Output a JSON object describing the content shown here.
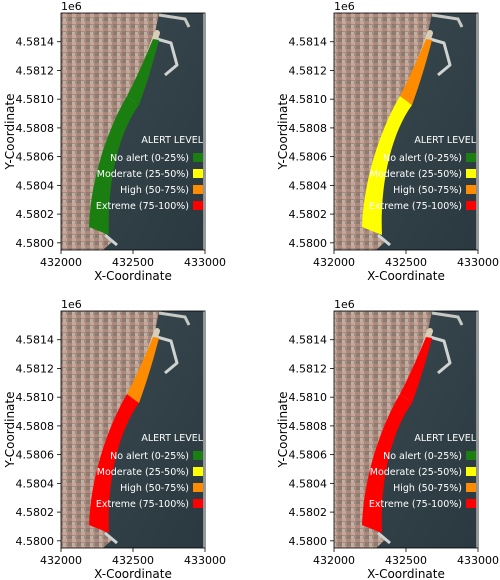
{
  "figure": {
    "axis_labels": {
      "x": "X-Coordinate",
      "y": "Y-Coordinate"
    },
    "offset_label": "1e6",
    "xticks": [
      "432000",
      "432500",
      "433000"
    ],
    "yticks": [
      "4.5814",
      "4.5812",
      "4.5810",
      "4.5808",
      "4.5806",
      "4.5804",
      "4.5802",
      "4.5800"
    ],
    "legend": {
      "title": "ALERT LEVEL",
      "entries": [
        {
          "label": "No alert (0-25%)",
          "color": "#1a7f10"
        },
        {
          "label": "Moderate (25-50%)",
          "color": "#ffff00"
        },
        {
          "label": "High  (50-75%)",
          "color": "#ff8c00"
        },
        {
          "label": "Extreme (75-100%)",
          "color": "#ff0000"
        }
      ]
    }
  },
  "chart_data": [
    {
      "type": "map",
      "xlabel": "X-Coordinate",
      "ylabel": "Y-Coordinate",
      "xlim": [
        432000,
        433000
      ],
      "ylim": [
        4.57995,
        4.5816
      ],
      "y_offset": "1e6",
      "legend_placement": "right",
      "segments": {
        "south": "No alert",
        "north": "No alert"
      },
      "segment_colors": {
        "south": "#1a7f10",
        "north": "#1a7f10"
      }
    },
    {
      "type": "map",
      "xlabel": "X-Coordinate",
      "ylabel": "Y-Coordinate",
      "xlim": [
        432000,
        433000
      ],
      "ylim": [
        4.57995,
        4.5816
      ],
      "y_offset": "1e6",
      "legend_placement": "right",
      "segments": {
        "south": "Moderate",
        "north": "High"
      },
      "segment_colors": {
        "south": "#ffff00",
        "north": "#ff8c00"
      }
    },
    {
      "type": "map",
      "xlabel": "X-Coordinate",
      "ylabel": "Y-Coordinate",
      "xlim": [
        432000,
        433000
      ],
      "ylim": [
        4.57995,
        4.5816
      ],
      "y_offset": "1e6",
      "legend_placement": "right",
      "segments": {
        "south": "Extreme",
        "north": "High"
      },
      "segment_colors": {
        "south": "#ff0000",
        "north": "#ff8c00"
      }
    },
    {
      "type": "map",
      "xlabel": "X-Coordinate",
      "ylabel": "Y-Coordinate",
      "xlim": [
        432000,
        433000
      ],
      "ylim": [
        4.57995,
        4.5816
      ],
      "y_offset": "1e6",
      "legend_placement": "right",
      "segments": {
        "south": "Extreme",
        "north": "Extreme"
      },
      "segment_colors": {
        "south": "#ff0000",
        "north": "#ff0000"
      }
    }
  ]
}
